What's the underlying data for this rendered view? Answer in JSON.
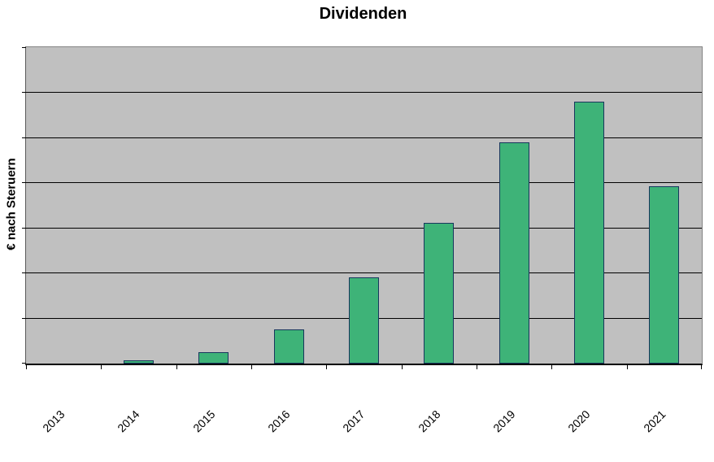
{
  "chart_data": {
    "type": "bar",
    "title": "Dividenden",
    "ylabel": "€ nach Steruern",
    "xlabel": "",
    "categories": [
      "2013",
      "2014",
      "2015",
      "2016",
      "2017",
      "2018",
      "2019",
      "2020",
      "2021"
    ],
    "values": [
      0,
      0.07,
      0.25,
      0.76,
      1.9,
      3.12,
      4.9,
      5.8,
      3.92
    ],
    "value_unit": "gridline-units (y axis has no numeric tick labels)",
    "ylim": [
      0,
      7
    ],
    "y_gridline_step": 1,
    "y_tick_labels_visible": false,
    "grid": "horizontal black lines on",
    "legend_position": "none",
    "x_label_rotation_deg": 45,
    "colors": {
      "plot_background": "#c0c0c0",
      "bar_fill": "#3eb378",
      "bar_border": "#17365d",
      "gridline": "#000000",
      "text": "#000000",
      "page_background": "#ffffff"
    }
  }
}
